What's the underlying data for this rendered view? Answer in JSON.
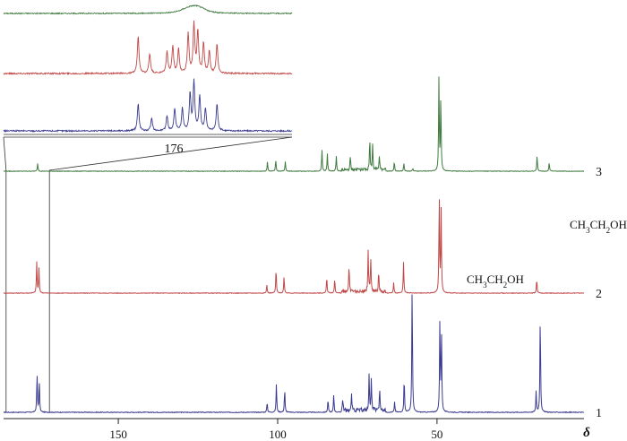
{
  "chart_data": {
    "type": "line",
    "title": "",
    "xlabel": "δ",
    "x_reversed": true,
    "xlim": [
      186,
      0
    ],
    "x_ticks": [
      150,
      100,
      50
    ],
    "grid": false,
    "series": [
      {
        "label": "1",
        "color": "#3b3b8f",
        "peaks": [
          {
            "x": 175.5,
            "h": 0.3
          },
          {
            "x": 174.8,
            "h": 0.24
          },
          {
            "x": 103.3,
            "h": 0.08
          },
          {
            "x": 100.4,
            "h": 0.22
          },
          {
            "x": 97.8,
            "h": 0.18
          },
          {
            "x": 84.2,
            "h": 0.1
          },
          {
            "x": 82.4,
            "h": 0.14
          },
          {
            "x": 79.6,
            "h": 0.09
          },
          {
            "x": 76.8,
            "h": 0.12
          },
          {
            "x": 71.3,
            "h": 0.28
          },
          {
            "x": 70.6,
            "h": 0.24
          },
          {
            "x": 68.0,
            "h": 0.16
          },
          {
            "x": 63.3,
            "h": 0.08
          },
          {
            "x": 60.3,
            "h": 0.27
          },
          {
            "x": 57.8,
            "h": 1.0
          },
          {
            "x": 49.1,
            "h": 0.7
          },
          {
            "x": 48.6,
            "h": 0.62
          },
          {
            "x": 18.9,
            "h": 0.16
          },
          {
            "x": 17.6,
            "h": 0.76
          }
        ]
      },
      {
        "label": "2",
        "color": "#c04848",
        "peaks": [
          {
            "x": 175.6,
            "h": 0.3
          },
          {
            "x": 174.9,
            "h": 0.24
          },
          {
            "x": 103.4,
            "h": 0.08
          },
          {
            "x": 100.5,
            "h": 0.24
          },
          {
            "x": 98.0,
            "h": 0.16
          },
          {
            "x": 84.6,
            "h": 0.16
          },
          {
            "x": 82.1,
            "h": 0.14
          },
          {
            "x": 77.6,
            "h": 0.25
          },
          {
            "x": 71.6,
            "h": 0.4
          },
          {
            "x": 70.8,
            "h": 0.34
          },
          {
            "x": 68.3,
            "h": 0.2
          },
          {
            "x": 63.6,
            "h": 0.1
          },
          {
            "x": 60.5,
            "h": 0.3
          },
          {
            "x": 49.3,
            "h": 0.95
          },
          {
            "x": 48.7,
            "h": 0.8
          },
          {
            "x": 18.7,
            "h": 0.14
          }
        ]
      },
      {
        "label": "3",
        "color": "#3f7a3f",
        "peaks": [
          {
            "x": 175.3,
            "h": 0.08
          },
          {
            "x": 103.2,
            "h": 0.1
          },
          {
            "x": 100.6,
            "h": 0.12
          },
          {
            "x": 97.6,
            "h": 0.1
          },
          {
            "x": 86.1,
            "h": 0.22
          },
          {
            "x": 84.4,
            "h": 0.18
          },
          {
            "x": 81.6,
            "h": 0.16
          },
          {
            "x": 77.2,
            "h": 0.14
          },
          {
            "x": 71.1,
            "h": 0.33
          },
          {
            "x": 70.2,
            "h": 0.27
          },
          {
            "x": 68.1,
            "h": 0.15
          },
          {
            "x": 63.4,
            "h": 0.1
          },
          {
            "x": 60.4,
            "h": 0.08
          },
          {
            "x": 57.6,
            "h": 0.03
          },
          {
            "x": 49.4,
            "h": 0.95
          },
          {
            "x": 48.8,
            "h": 0.78
          },
          {
            "x": 18.6,
            "h": 0.16
          },
          {
            "x": 14.8,
            "h": 0.09
          }
        ]
      }
    ],
    "annotations": [
      {
        "text": "CH3CH2OH",
        "parts": [
          "CH",
          "3",
          "CH",
          "2",
          "OH"
        ],
        "near_series": "2",
        "x": 57.8
      },
      {
        "text": "CH3CH2OH",
        "parts": [
          "CH",
          "3",
          "CH",
          "2",
          "OH"
        ],
        "near_series": "1",
        "x": 17.6
      }
    ],
    "inset": {
      "label": "176",
      "x_range": [
        186,
        171
      ],
      "series": [
        {
          "of": "3",
          "color": "#3f7a3f",
          "peaks": [
            {
              "x": 176.3,
              "h": 0.35
            },
            {
              "x": 176.0,
              "h": 0.45
            },
            {
              "x": 175.7,
              "h": 0.3
            },
            {
              "x": 176.6,
              "h": 0.2
            }
          ]
        },
        {
          "of": "2",
          "color": "#c04848",
          "peaks": [
            {
              "x": 179.0,
              "h": 0.75
            },
            {
              "x": 178.4,
              "h": 0.4
            },
            {
              "x": 177.5,
              "h": 0.45
            },
            {
              "x": 177.2,
              "h": 0.55
            },
            {
              "x": 176.9,
              "h": 0.5
            },
            {
              "x": 176.4,
              "h": 0.8
            },
            {
              "x": 176.1,
              "h": 1.0
            },
            {
              "x": 175.9,
              "h": 0.85
            },
            {
              "x": 175.6,
              "h": 0.6
            },
            {
              "x": 175.3,
              "h": 0.45
            },
            {
              "x": 174.9,
              "h": 0.6
            }
          ]
        },
        {
          "of": "1",
          "color": "#3b3b8f",
          "peaks": [
            {
              "x": 179.0,
              "h": 0.55
            },
            {
              "x": 178.3,
              "h": 0.25
            },
            {
              "x": 177.5,
              "h": 0.3
            },
            {
              "x": 177.1,
              "h": 0.45
            },
            {
              "x": 176.7,
              "h": 0.45
            },
            {
              "x": 176.3,
              "h": 0.75
            },
            {
              "x": 176.1,
              "h": 1.0
            },
            {
              "x": 175.8,
              "h": 0.7
            },
            {
              "x": 175.5,
              "h": 0.45
            },
            {
              "x": 174.9,
              "h": 0.55
            }
          ]
        }
      ]
    }
  }
}
